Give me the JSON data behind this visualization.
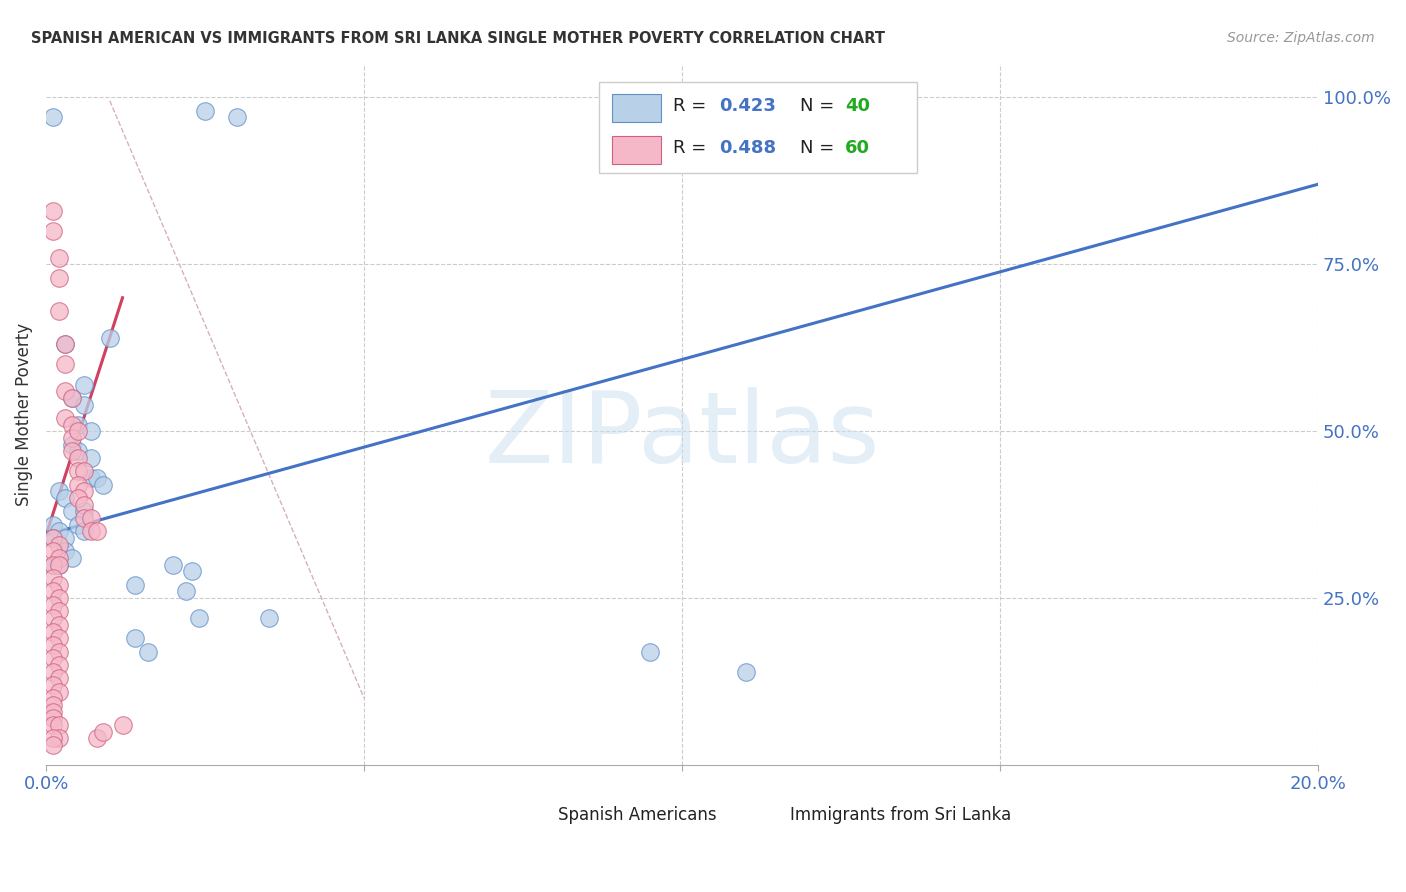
{
  "title": "SPANISH AMERICAN VS IMMIGRANTS FROM SRI LANKA SINGLE MOTHER POVERTY CORRELATION CHART",
  "source": "Source: ZipAtlas.com",
  "ylabel": "Single Mother Poverty",
  "xlim": [
    0.0,
    0.2
  ],
  "ylim": [
    0.0,
    1.05
  ],
  "legend_label_blue": "Spanish Americans",
  "legend_label_pink": "Immigrants from Sri Lanka",
  "blue_face_color": "#b8d0e8",
  "pink_face_color": "#f5b8c8",
  "blue_edge_color": "#6090c8",
  "pink_edge_color": "#d06080",
  "blue_line_color": "#4472c4",
  "pink_line_color": "#d04060",
  "r_color": "#4472c4",
  "n_color": "#22aa22",
  "ref_line_color": "#d0a0b0",
  "grid_color": "#cccccc",
  "background_color": "#ffffff",
  "watermark": "ZIPatlas",
  "blue_regline_x": [
    0.0,
    0.2
  ],
  "blue_regline_y": [
    0.345,
    0.87
  ],
  "pink_regline_x": [
    0.0,
    0.012
  ],
  "pink_regline_y": [
    0.345,
    0.7
  ],
  "ref_line_x": [
    0.01,
    0.05
  ],
  "ref_line_y": [
    0.995,
    0.1
  ],
  "blue_dots": [
    [
      0.001,
      0.97
    ],
    [
      0.025,
      0.98
    ],
    [
      0.03,
      0.97
    ],
    [
      0.003,
      0.63
    ],
    [
      0.01,
      0.64
    ],
    [
      0.004,
      0.55
    ],
    [
      0.006,
      0.57
    ],
    [
      0.006,
      0.54
    ],
    [
      0.005,
      0.51
    ],
    [
      0.007,
      0.5
    ],
    [
      0.004,
      0.48
    ],
    [
      0.005,
      0.47
    ],
    [
      0.007,
      0.46
    ],
    [
      0.007,
      0.43
    ],
    [
      0.008,
      0.43
    ],
    [
      0.009,
      0.42
    ],
    [
      0.002,
      0.41
    ],
    [
      0.003,
      0.4
    ],
    [
      0.004,
      0.38
    ],
    [
      0.006,
      0.38
    ],
    [
      0.005,
      0.36
    ],
    [
      0.006,
      0.35
    ],
    [
      0.001,
      0.36
    ],
    [
      0.002,
      0.35
    ],
    [
      0.001,
      0.34
    ],
    [
      0.003,
      0.34
    ],
    [
      0.003,
      0.32
    ],
    [
      0.004,
      0.31
    ],
    [
      0.001,
      0.3
    ],
    [
      0.002,
      0.3
    ],
    [
      0.02,
      0.3
    ],
    [
      0.023,
      0.29
    ],
    [
      0.014,
      0.27
    ],
    [
      0.022,
      0.26
    ],
    [
      0.024,
      0.22
    ],
    [
      0.035,
      0.22
    ],
    [
      0.014,
      0.19
    ],
    [
      0.016,
      0.17
    ],
    [
      0.095,
      0.17
    ],
    [
      0.11,
      0.14
    ]
  ],
  "pink_dots": [
    [
      0.001,
      0.83
    ],
    [
      0.001,
      0.8
    ],
    [
      0.002,
      0.76
    ],
    [
      0.002,
      0.73
    ],
    [
      0.002,
      0.68
    ],
    [
      0.003,
      0.63
    ],
    [
      0.003,
      0.6
    ],
    [
      0.003,
      0.56
    ],
    [
      0.004,
      0.55
    ],
    [
      0.003,
      0.52
    ],
    [
      0.004,
      0.51
    ],
    [
      0.004,
      0.49
    ],
    [
      0.005,
      0.5
    ],
    [
      0.004,
      0.47
    ],
    [
      0.005,
      0.46
    ],
    [
      0.005,
      0.44
    ],
    [
      0.006,
      0.44
    ],
    [
      0.005,
      0.42
    ],
    [
      0.006,
      0.41
    ],
    [
      0.005,
      0.4
    ],
    [
      0.006,
      0.39
    ],
    [
      0.006,
      0.37
    ],
    [
      0.007,
      0.37
    ],
    [
      0.007,
      0.35
    ],
    [
      0.008,
      0.35
    ],
    [
      0.001,
      0.34
    ],
    [
      0.002,
      0.33
    ],
    [
      0.001,
      0.32
    ],
    [
      0.002,
      0.31
    ],
    [
      0.001,
      0.3
    ],
    [
      0.002,
      0.3
    ],
    [
      0.001,
      0.28
    ],
    [
      0.002,
      0.27
    ],
    [
      0.001,
      0.26
    ],
    [
      0.002,
      0.25
    ],
    [
      0.001,
      0.24
    ],
    [
      0.002,
      0.23
    ],
    [
      0.001,
      0.22
    ],
    [
      0.002,
      0.21
    ],
    [
      0.001,
      0.2
    ],
    [
      0.002,
      0.19
    ],
    [
      0.001,
      0.18
    ],
    [
      0.002,
      0.17
    ],
    [
      0.001,
      0.16
    ],
    [
      0.002,
      0.15
    ],
    [
      0.001,
      0.14
    ],
    [
      0.002,
      0.13
    ],
    [
      0.001,
      0.12
    ],
    [
      0.002,
      0.11
    ],
    [
      0.001,
      0.1
    ],
    [
      0.001,
      0.09
    ],
    [
      0.001,
      0.08
    ],
    [
      0.001,
      0.07
    ],
    [
      0.001,
      0.06
    ],
    [
      0.002,
      0.06
    ],
    [
      0.008,
      0.04
    ],
    [
      0.009,
      0.05
    ],
    [
      0.012,
      0.06
    ],
    [
      0.002,
      0.04
    ],
    [
      0.001,
      0.04
    ],
    [
      0.001,
      0.03
    ]
  ]
}
